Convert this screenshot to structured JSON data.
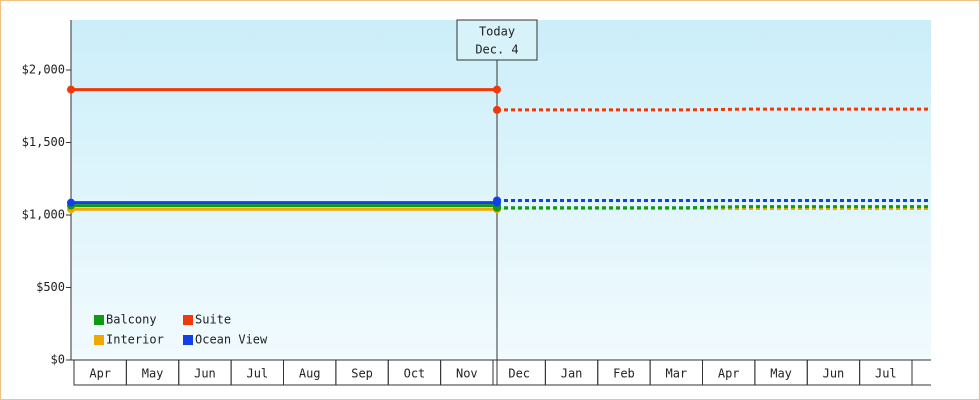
{
  "chart_data": {
    "type": "line",
    "annotation": {
      "label": "Today",
      "date": "Dec. 4"
    },
    "categories": [
      "Apr",
      "May",
      "Jun",
      "Jul",
      "Aug",
      "Sep",
      "Oct",
      "Nov",
      "Dec",
      "Jan",
      "Feb",
      "Mar",
      "Apr",
      "May",
      "Jun",
      "Jul"
    ],
    "today_index": 8,
    "ylim": [
      0,
      2345
    ],
    "yticks": [
      {
        "value": 0,
        "label": "$0"
      },
      {
        "value": 500,
        "label": "$500"
      },
      {
        "value": 1000,
        "label": "$1,000"
      },
      {
        "value": 1500,
        "label": "$1,500"
      },
      {
        "value": 2000,
        "label": "$2,000"
      }
    ],
    "series": [
      {
        "name": "Interior",
        "color": "#f0a800",
        "values": [
          1040,
          1040,
          1040,
          1040,
          1040,
          1040,
          1040,
          1040,
          null,
          null,
          null,
          null,
          null,
          null,
          null,
          null
        ],
        "forecast": [
          null,
          null,
          null,
          null,
          null,
          null,
          null,
          null,
          1045,
          1045,
          1045,
          1045,
          1045,
          1045,
          1045,
          1045
        ]
      },
      {
        "name": "Balcony",
        "color": "#109a10",
        "values": [
          1065,
          1065,
          1065,
          1065,
          1065,
          1065,
          1065,
          1065,
          null,
          null,
          null,
          null,
          null,
          null,
          null,
          null
        ],
        "forecast": [
          null,
          null,
          null,
          null,
          null,
          null,
          null,
          null,
          1050,
          1050,
          1050,
          1050,
          1058,
          1058,
          1058,
          1058
        ]
      },
      {
        "name": "Ocean View",
        "color": "#1040e8",
        "values": [
          1085,
          1085,
          1085,
          1085,
          1085,
          1085,
          1085,
          1085,
          null,
          null,
          null,
          null,
          null,
          null,
          null,
          null
        ],
        "forecast": [
          null,
          null,
          null,
          null,
          null,
          null,
          null,
          null,
          1100,
          1100,
          1100,
          1100,
          1100,
          1100,
          1100,
          1100
        ]
      },
      {
        "name": "Suite",
        "color": "#f03808",
        "values": [
          1865,
          1865,
          1865,
          1865,
          1865,
          1865,
          1865,
          1865,
          null,
          null,
          null,
          null,
          null,
          null,
          null,
          null
        ],
        "forecast": [
          null,
          null,
          null,
          null,
          null,
          null,
          null,
          null,
          1725,
          1725,
          1725,
          1725,
          1730,
          1730,
          1730,
          1730
        ]
      }
    ]
  }
}
